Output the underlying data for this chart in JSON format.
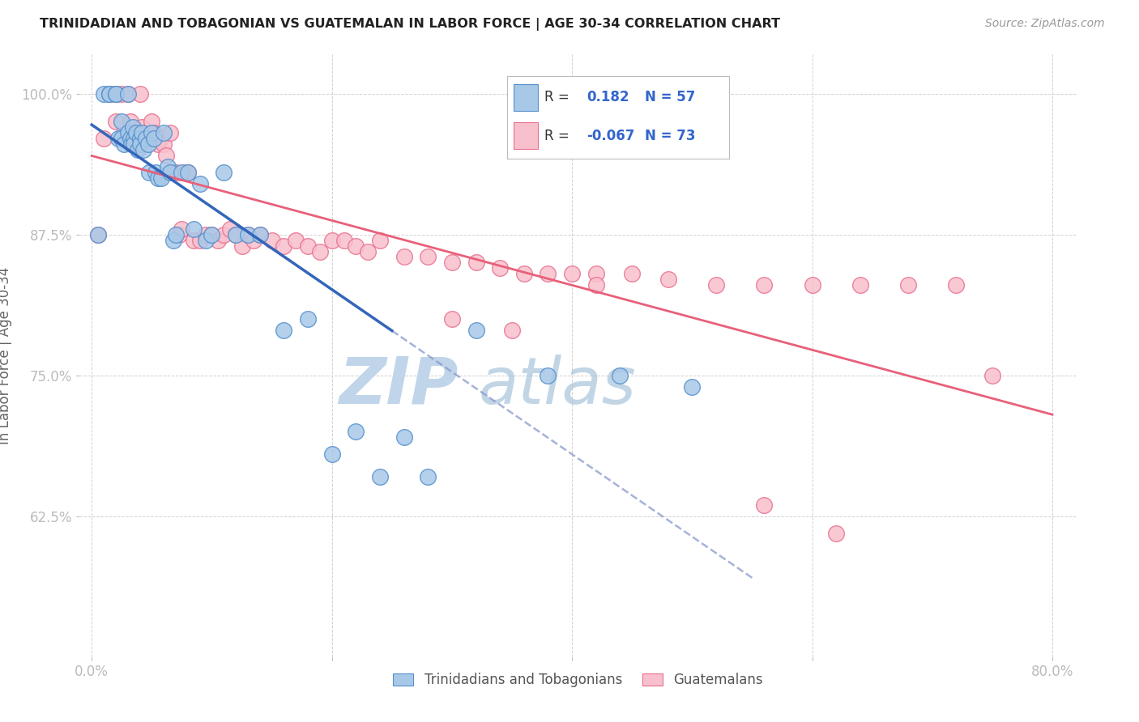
{
  "title": "TRINIDADIAN AND TOBAGONIAN VS GUATEMALAN IN LABOR FORCE | AGE 30-34 CORRELATION CHART",
  "source": "Source: ZipAtlas.com",
  "ylabel": "In Labor Force | Age 30-34",
  "xlim": [
    -0.01,
    0.82
  ],
  "ylim": [
    0.5,
    1.035
  ],
  "xtick_positions": [
    0.0,
    0.2,
    0.4,
    0.6,
    0.8
  ],
  "xticklabels": [
    "0.0%",
    "",
    "",
    "",
    "80.0%"
  ],
  "ytick_positions": [
    0.625,
    0.75,
    0.875,
    1.0
  ],
  "yticklabels": [
    "62.5%",
    "75.0%",
    "87.5%",
    "100.0%"
  ],
  "R_blue": 0.182,
  "N_blue": 57,
  "R_pink": -0.067,
  "N_pink": 73,
  "blue_fill": "#A8C8E8",
  "blue_edge": "#5590CC",
  "pink_fill": "#F8C0CC",
  "pink_edge": "#E87090",
  "blue_line_color": "#3366BB",
  "blue_dash_color": "#8899CC",
  "pink_line_color": "#E8607A",
  "watermark_zip_color": "#C0D5EA",
  "watermark_atlas_color": "#A0BFD8",
  "legend_box_color": "#EEEEEE",
  "blue_x": [
    0.005,
    0.01,
    0.015,
    0.015,
    0.02,
    0.02,
    0.022,
    0.025,
    0.025,
    0.027,
    0.03,
    0.03,
    0.032,
    0.033,
    0.034,
    0.035,
    0.035,
    0.037,
    0.038,
    0.04,
    0.04,
    0.042,
    0.043,
    0.045,
    0.047,
    0.048,
    0.05,
    0.052,
    0.053,
    0.055,
    0.058,
    0.06,
    0.063,
    0.065,
    0.068,
    0.07,
    0.075,
    0.08,
    0.085,
    0.09,
    0.095,
    0.1,
    0.11,
    0.12,
    0.13,
    0.14,
    0.16,
    0.18,
    0.2,
    0.22,
    0.24,
    0.26,
    0.28,
    0.32,
    0.38,
    0.44,
    0.5
  ],
  "blue_y": [
    0.875,
    1.0,
    1.0,
    1.0,
    1.0,
    1.0,
    0.96,
    0.975,
    0.96,
    0.955,
    1.0,
    0.965,
    0.96,
    0.955,
    0.97,
    0.96,
    0.955,
    0.965,
    0.95,
    0.96,
    0.955,
    0.965,
    0.95,
    0.96,
    0.955,
    0.93,
    0.965,
    0.96,
    0.93,
    0.925,
    0.925,
    0.965,
    0.935,
    0.93,
    0.87,
    0.875,
    0.93,
    0.93,
    0.88,
    0.92,
    0.87,
    0.875,
    0.93,
    0.875,
    0.875,
    0.875,
    0.79,
    0.8,
    0.68,
    0.7,
    0.66,
    0.695,
    0.66,
    0.79,
    0.75,
    0.75,
    0.74
  ],
  "pink_x": [
    0.005,
    0.01,
    0.015,
    0.02,
    0.02,
    0.025,
    0.03,
    0.032,
    0.034,
    0.036,
    0.038,
    0.04,
    0.042,
    0.045,
    0.047,
    0.05,
    0.052,
    0.055,
    0.057,
    0.06,
    0.062,
    0.065,
    0.068,
    0.07,
    0.073,
    0.075,
    0.078,
    0.08,
    0.085,
    0.09,
    0.095,
    0.1,
    0.105,
    0.11,
    0.115,
    0.12,
    0.125,
    0.13,
    0.135,
    0.14,
    0.15,
    0.16,
    0.17,
    0.18,
    0.19,
    0.2,
    0.21,
    0.22,
    0.23,
    0.24,
    0.26,
    0.28,
    0.3,
    0.32,
    0.34,
    0.36,
    0.38,
    0.4,
    0.42,
    0.45,
    0.48,
    0.52,
    0.56,
    0.6,
    0.64,
    0.68,
    0.72,
    0.3,
    0.35,
    0.42,
    0.56,
    0.62,
    0.75
  ],
  "pink_y": [
    0.875,
    0.96,
    1.0,
    1.0,
    0.975,
    1.0,
    1.0,
    0.975,
    0.965,
    0.96,
    0.955,
    1.0,
    0.97,
    0.965,
    0.96,
    0.975,
    0.965,
    0.955,
    0.96,
    0.955,
    0.945,
    0.965,
    0.93,
    0.93,
    0.875,
    0.88,
    0.93,
    0.93,
    0.87,
    0.87,
    0.875,
    0.875,
    0.87,
    0.875,
    0.88,
    0.875,
    0.865,
    0.875,
    0.87,
    0.875,
    0.87,
    0.865,
    0.87,
    0.865,
    0.86,
    0.87,
    0.87,
    0.865,
    0.86,
    0.87,
    0.855,
    0.855,
    0.85,
    0.85,
    0.845,
    0.84,
    0.84,
    0.84,
    0.84,
    0.84,
    0.835,
    0.83,
    0.83,
    0.83,
    0.83,
    0.83,
    0.83,
    0.8,
    0.79,
    0.83,
    0.635,
    0.61,
    0.75
  ]
}
